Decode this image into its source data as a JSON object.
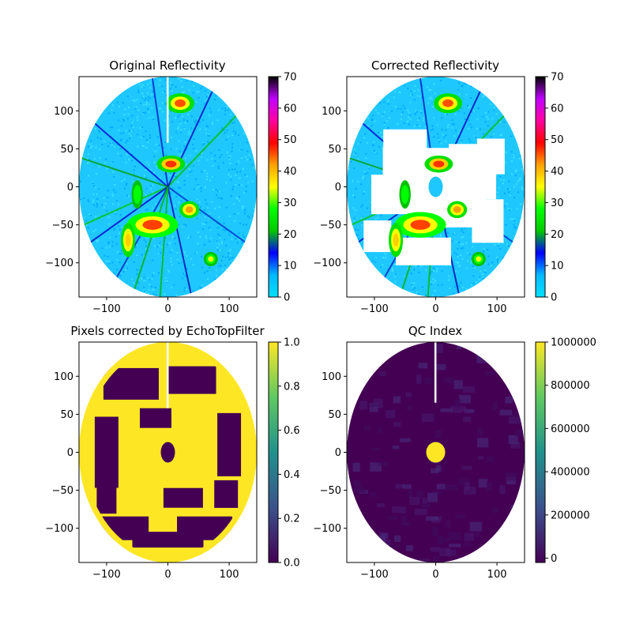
{
  "figure": {
    "background": "#ffffff"
  },
  "chart_data": [
    {
      "type": "heatmap",
      "title": "Original Reflectivity",
      "xlabel": "",
      "ylabel": "",
      "xlim": [
        -145,
        145
      ],
      "ylim": [
        -145,
        145
      ],
      "xticks": [
        -100,
        0,
        100
      ],
      "yticks": [
        -100,
        -50,
        0,
        50,
        100
      ],
      "xtick_labels": [
        "−100",
        "0",
        "100"
      ],
      "ytick_labels": [
        "−100",
        "−50",
        "0",
        "50",
        "100"
      ],
      "radar_range_km": 145,
      "colormap": "radar reflectivity (cyan-blue-green-yellow-red-magenta-black)",
      "colorbar": {
        "min": 0,
        "max": 70,
        "ticks": [
          0,
          10,
          20,
          30,
          40,
          50,
          60,
          70
        ],
        "tick_labels": [
          "0",
          "10",
          "20",
          "30",
          "40",
          "50",
          "60",
          "70"
        ]
      },
      "colormap_stops": [
        "#00e0ff",
        "#00b8ff",
        "#0000ff",
        "#00c800",
        "#00ff00",
        "#ffff00",
        "#ffa000",
        "#ff0000",
        "#ff00a0",
        "#c000ff",
        "#000000"
      ]
    },
    {
      "type": "heatmap",
      "title": "Corrected Reflectivity",
      "xlabel": "",
      "ylabel": "",
      "xlim": [
        -145,
        145
      ],
      "ylim": [
        -145,
        145
      ],
      "xticks": [
        -100,
        0,
        100
      ],
      "yticks": [
        -100,
        -50,
        0,
        50,
        100
      ],
      "xtick_labels": [
        "−100",
        "0",
        "100"
      ],
      "ytick_labels": [
        "−100",
        "−50",
        "0",
        "50",
        "100"
      ],
      "radar_range_km": 145,
      "colormap": "radar reflectivity (cyan-blue-green-yellow-red-magenta-black)",
      "colorbar": {
        "min": 0,
        "max": 70,
        "ticks": [
          0,
          10,
          20,
          30,
          40,
          50,
          60,
          70
        ],
        "tick_labels": [
          "0",
          "10",
          "20",
          "30",
          "40",
          "50",
          "60",
          "70"
        ]
      },
      "colormap_stops": [
        "#00e0ff",
        "#00b8ff",
        "#0000ff",
        "#00c800",
        "#00ff00",
        "#ffff00",
        "#ffa000",
        "#ff0000",
        "#ff00a0",
        "#c000ff",
        "#000000"
      ]
    },
    {
      "type": "heatmap",
      "title": "Pixels corrected by EchoTopFilter",
      "xlabel": "",
      "ylabel": "",
      "xlim": [
        -145,
        145
      ],
      "ylim": [
        -145,
        145
      ],
      "xticks": [
        -100,
        0,
        100
      ],
      "yticks": [
        -100,
        -50,
        0,
        50,
        100
      ],
      "xtick_labels": [
        "−100",
        "0",
        "100"
      ],
      "ytick_labels": [
        "−100",
        "−50",
        "0",
        "50",
        "100"
      ],
      "radar_range_km": 145,
      "colormap": "viridis",
      "colorbar": {
        "min": 0,
        "max": 1,
        "ticks": [
          0,
          0.2,
          0.4,
          0.6,
          0.8,
          1.0
        ],
        "tick_labels": [
          "0.0",
          "0.2",
          "0.4",
          "0.6",
          "0.8",
          "1.0"
        ]
      },
      "colormap_stops": [
        "#440154",
        "#3b528b",
        "#21918c",
        "#5ec962",
        "#fde725"
      ]
    },
    {
      "type": "heatmap",
      "title": "QC Index",
      "xlabel": "",
      "ylabel": "",
      "xlim": [
        -145,
        145
      ],
      "ylim": [
        -145,
        145
      ],
      "xticks": [
        -100,
        0,
        100
      ],
      "yticks": [
        -100,
        -50,
        0,
        50,
        100
      ],
      "xtick_labels": [
        "−100",
        "0",
        "100"
      ],
      "ytick_labels": [
        "−100",
        "−50",
        "0",
        "50",
        "100"
      ],
      "radar_range_km": 145,
      "colormap": "viridis",
      "colorbar": {
        "min": -20000,
        "max": 1000000,
        "ticks": [
          0,
          200000,
          400000,
          600000,
          800000,
          1000000
        ],
        "tick_labels": [
          "0",
          "200000",
          "400000",
          "600000",
          "800000",
          "1000000"
        ]
      },
      "colormap_stops": [
        "#440154",
        "#3b528b",
        "#21918c",
        "#5ec962",
        "#fde725"
      ]
    }
  ]
}
